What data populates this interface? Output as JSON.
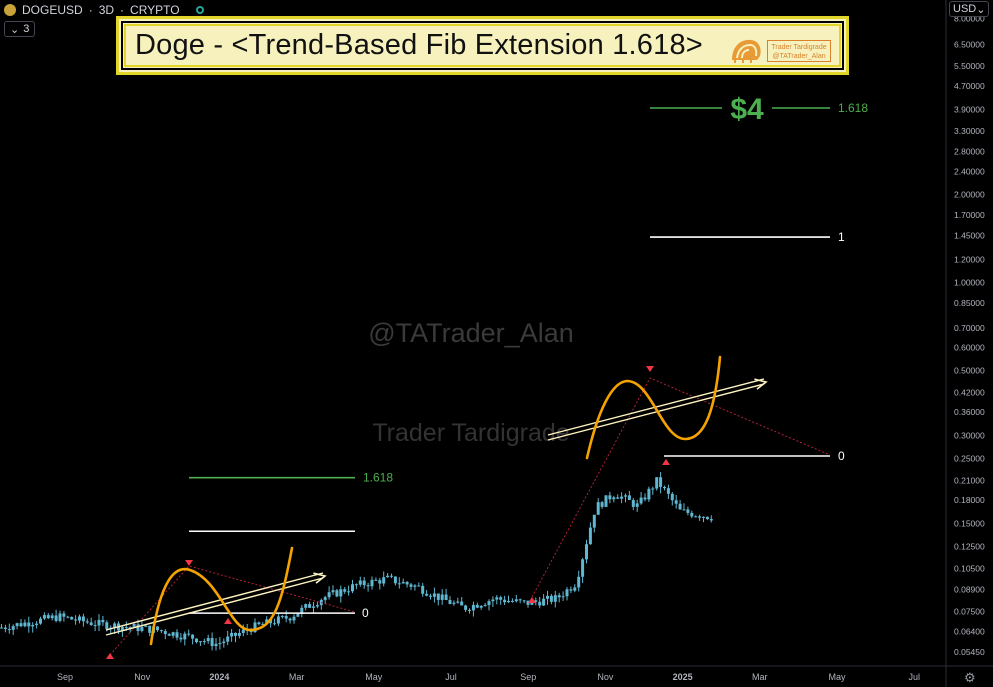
{
  "header": {
    "symbol": "DOGEUSD",
    "interval": "3D",
    "exchange": "CRYPTO",
    "separator": "·",
    "indicator_count": "3",
    "currency": "USD"
  },
  "banner": {
    "title": "Doge - <Trend-Based Fib Extension 1.618>",
    "logo_line1": "Trader Tardigrade",
    "logo_line2": "@TATrader_Alan"
  },
  "watermarks": {
    "handle": "@TATrader_Alan",
    "name": "Trader Tardigrade"
  },
  "colors": {
    "background": "#000000",
    "candle_color": "#5fb7d1",
    "fib_green": "#4caf50",
    "fib_white": "#ffffff",
    "curve_orange": "#f4a300",
    "arrow_color": "#fff4c2",
    "marker_red": "#f23645",
    "dotted_red": "#b2203a",
    "banner_bg": "#f6f1bd",
    "banner_border": "#e2d52a"
  },
  "chart_data": {
    "type": "candlestick",
    "title": "Doge - <Trend-Based Fib Extension 1.618>",
    "xlabel": "",
    "ylabel": "",
    "y_scale": "log",
    "x_ticks": [
      "Sep",
      "Nov",
      "2024",
      "Mar",
      "May",
      "Jul",
      "Sep",
      "Nov",
      "2025",
      "Mar",
      "May",
      "Jul"
    ],
    "x_tick_bold": [
      "2024",
      "2025"
    ],
    "y_ticks": [
      "8.00000",
      "6.50000",
      "5.50000",
      "4.70000",
      "3.90000",
      "3.30000",
      "2.80000",
      "2.40000",
      "2.00000",
      "1.70000",
      "1.45000",
      "1.20000",
      "1.00000",
      "0.85000",
      "0.70000",
      "0.60000",
      "0.50000",
      "0.42000",
      "0.36000",
      "0.30000",
      "0.25000",
      "0.21000",
      "0.18000",
      "0.15000",
      "0.12500",
      "0.10500",
      "0.08900",
      "0.07500",
      "0.06400",
      "0.05450"
    ],
    "ylim": [
      0.052,
      8.0
    ],
    "price_path": [
      [
        0.0,
        0.066
      ],
      [
        1.5,
        0.072
      ],
      [
        2.5,
        0.068
      ],
      [
        4.0,
        0.065
      ],
      [
        5.0,
        0.061
      ],
      [
        5.6,
        0.058
      ],
      [
        6.5,
        0.066
      ],
      [
        7.5,
        0.072
      ],
      [
        8.3,
        0.083
      ],
      [
        9.2,
        0.092
      ],
      [
        10.0,
        0.097
      ],
      [
        10.8,
        0.091
      ],
      [
        11.5,
        0.082
      ],
      [
        12.0,
        0.077
      ],
      [
        12.8,
        0.083
      ],
      [
        13.6,
        0.08
      ],
      [
        14.4,
        0.083
      ],
      [
        14.9,
        0.094
      ],
      [
        15.4,
        0.17
      ],
      [
        15.9,
        0.19
      ],
      [
        16.5,
        0.172
      ],
      [
        17.0,
        0.21
      ],
      [
        17.6,
        0.165
      ],
      [
        18.4,
        0.158
      ],
      [
        19.2,
        0.16
      ],
      [
        20.0,
        0.165
      ],
      [
        21.0,
        0.15
      ],
      [
        22.0,
        0.138
      ],
      [
        22.8,
        0.125
      ],
      [
        23.6,
        0.12
      ],
      [
        24.4,
        0.128
      ],
      [
        25.2,
        0.112
      ],
      [
        26.0,
        0.104
      ],
      [
        26.8,
        0.097
      ],
      [
        27.5,
        0.094
      ],
      [
        28.2,
        0.093
      ],
      [
        29.0,
        0.103
      ],
      [
        29.8,
        0.108
      ],
      [
        30.8,
        0.11
      ],
      [
        31.6,
        0.14
      ],
      [
        32.2,
        0.18
      ],
      [
        32.5,
        0.26
      ],
      [
        33.2,
        0.36
      ],
      [
        33.8,
        0.4
      ],
      [
        34.4,
        0.43
      ],
      [
        34.9,
        0.38
      ],
      [
        35.2,
        0.33
      ],
      [
        35.6,
        0.31
      ],
      [
        36.1,
        0.35
      ],
      [
        36.6,
        0.37
      ],
      [
        37.1,
        0.39
      ],
      [
        37.6,
        0.4
      ],
      [
        38.0,
        0.37
      ]
    ],
    "fib_levels": [
      {
        "label": "1.618",
        "price_label": "$4",
        "color": "green",
        "value": 3.95
      },
      {
        "label": "1",
        "color": "white",
        "value": 1.43
      },
      {
        "label": "0",
        "color": "white",
        "value": 0.255
      },
      {
        "label": "1.618",
        "color": "green",
        "value": 0.215
      },
      {
        "label": "",
        "color": "white",
        "value": 0.141
      },
      {
        "label": "0",
        "color": "white",
        "value": 0.074
      }
    ]
  }
}
